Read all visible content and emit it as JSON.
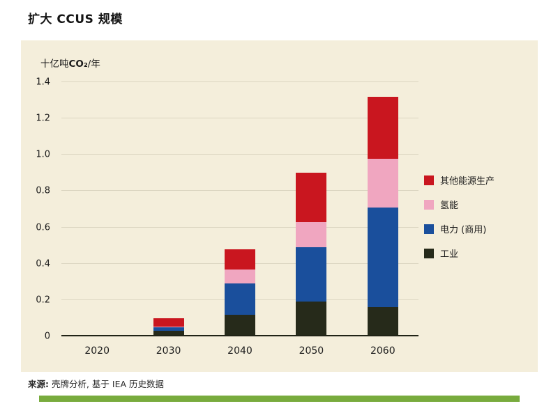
{
  "page": {
    "title": "扩大 CCUS 规模",
    "source_label": "来源:",
    "source_text": " 壳牌分析, 基于 IEA 历史数据"
  },
  "chart_data": {
    "type": "bar",
    "stacked": true,
    "unit": {
      "prefix": "十亿吨",
      "co2": "CO₂",
      "suffix": "/年"
    },
    "categories": [
      "2020",
      "2030",
      "2040",
      "2050",
      "2060"
    ],
    "series": [
      {
        "name": "工业",
        "color": "#262a1a",
        "values": [
          0.002,
          0.03,
          0.12,
          0.19,
          0.16
        ]
      },
      {
        "name": "电力 (商用)",
        "color": "#1a4f9c",
        "values": [
          0.001,
          0.02,
          0.17,
          0.3,
          0.55
        ]
      },
      {
        "name": "氢能",
        "color": "#f0a6c0",
        "values": [
          0.0,
          0.005,
          0.08,
          0.14,
          0.27
        ]
      },
      {
        "name": "其他能源生产",
        "color": "#c9161f",
        "values": [
          0.002,
          0.045,
          0.11,
          0.27,
          0.34
        ]
      }
    ],
    "legend_order": [
      "其他能源生产",
      "氢能",
      "电力 (商用)",
      "工业"
    ],
    "ylim": [
      0,
      1.4
    ],
    "yticks": [
      0,
      0.2,
      0.4,
      0.6,
      0.8,
      1.0,
      1.2,
      1.4
    ],
    "grid": true,
    "legend_position": "right"
  },
  "colors": {
    "panel_bg": "#f4eedb",
    "accent_bar": "#78ab3d",
    "gridline": "#dbd5c1",
    "axis_line": "#202316"
  }
}
